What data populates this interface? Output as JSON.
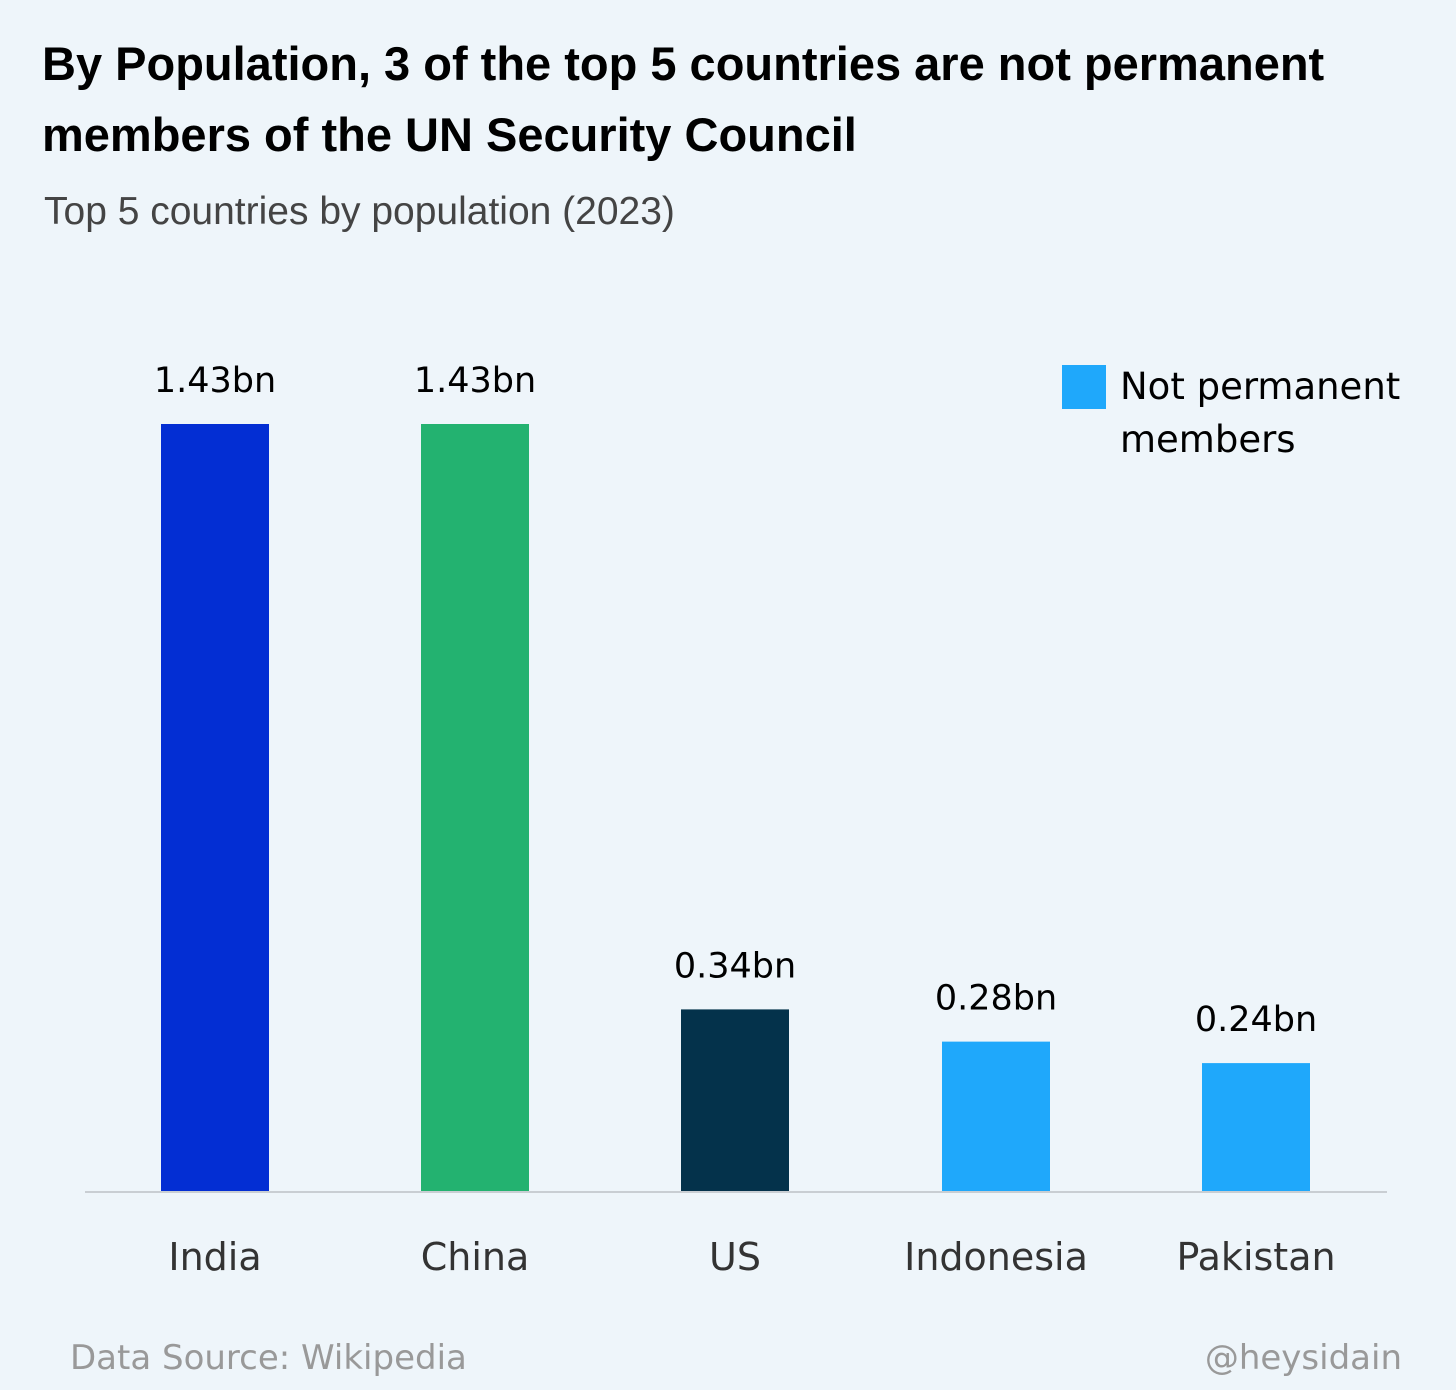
{
  "title": "By Population, 3 of the top 5 countries are not permanent members of the UN Security Council",
  "subtitle": "Top 5 countries by population (2023)",
  "legend": {
    "label": "Not permanent members",
    "color": "#1fa8fb"
  },
  "footer": {
    "source": "Data Source: Wikipedia",
    "handle": "@heysidain"
  },
  "chart_data": {
    "type": "bar",
    "categories": [
      "India",
      "China",
      "US",
      "Indonesia",
      "Pakistan"
    ],
    "values": [
      1.43,
      1.43,
      0.34,
      0.28,
      0.24
    ],
    "value_labels": [
      "1.43bn",
      "1.43bn",
      "0.34bn",
      "0.28bn",
      "0.24bn"
    ],
    "colors": [
      "#032ed3",
      "#23b270",
      "#04324b",
      "#1fa8fb",
      "#1fa8fb"
    ],
    "title": "By Population, 3 of the top 5 countries are not permanent members of the UN Security Council",
    "subtitle": "Top 5 countries by population (2023)",
    "xlabel": "",
    "ylabel": "",
    "ylim": [
      0,
      1.43
    ],
    "grid": false,
    "legend_position": "top-right"
  }
}
